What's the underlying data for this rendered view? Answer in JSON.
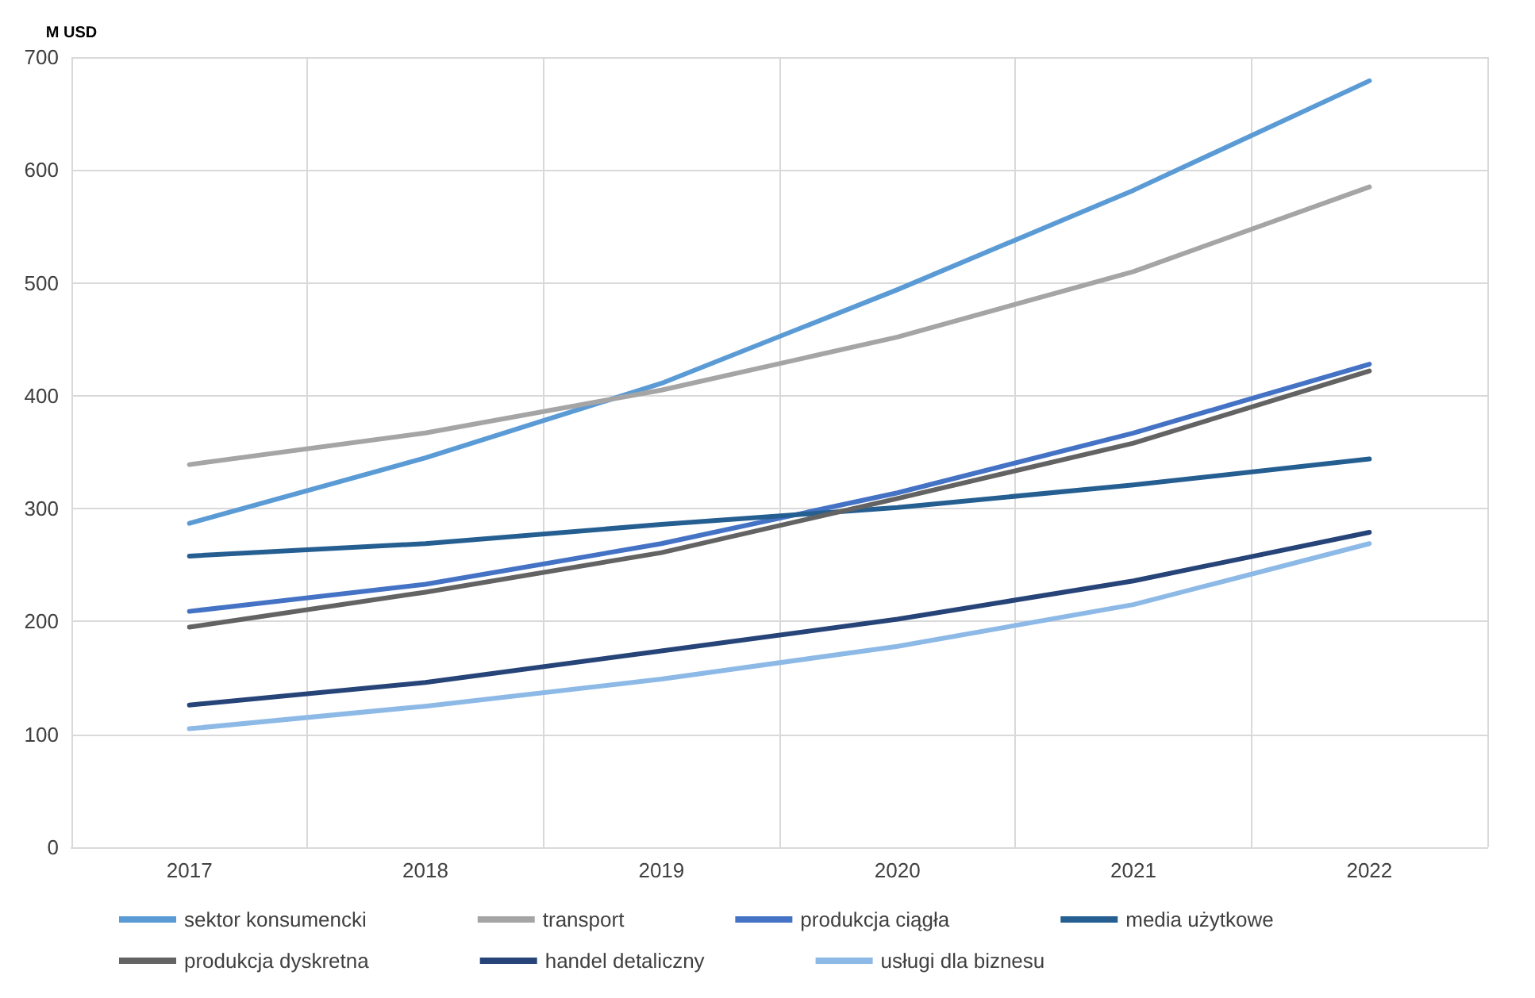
{
  "chart_data": {
    "type": "line",
    "ylabel": "M USD",
    "categories": [
      "2017",
      "2018",
      "2019",
      "2020",
      "2021",
      "2022"
    ],
    "series": [
      {
        "name": "sektor konsumencki",
        "color": "#5b9bd5",
        "values": [
          287,
          345,
          411,
          494,
          582,
          679
        ]
      },
      {
        "name": "transport",
        "color": "#a5a5a5",
        "values": [
          339,
          367,
          405,
          452,
          510,
          585
        ]
      },
      {
        "name": "produkcja ciągła",
        "color": "#4472c4",
        "values": [
          209,
          233,
          269,
          314,
          367,
          428
        ]
      },
      {
        "name": "media użytkowe",
        "color": "#255e91",
        "values": [
          258,
          269,
          286,
          301,
          321,
          344
        ]
      },
      {
        "name": "produkcja dyskretna",
        "color": "#636363",
        "values": [
          195,
          226,
          261,
          309,
          358,
          422
        ]
      },
      {
        "name": "handel detaliczny",
        "color": "#264478",
        "values": [
          126,
          146,
          174,
          202,
          236,
          279
        ]
      },
      {
        "name": "usługi dla biznesu",
        "color": "#8db9e6",
        "values": [
          105,
          125,
          149,
          178,
          215,
          269
        ]
      }
    ],
    "ylim": [
      0,
      700
    ],
    "yticks": [
      0,
      100,
      200,
      300,
      400,
      500,
      600,
      700
    ],
    "grid": true,
    "legend": "bottom",
    "marker": "none",
    "line_style": "solid"
  }
}
